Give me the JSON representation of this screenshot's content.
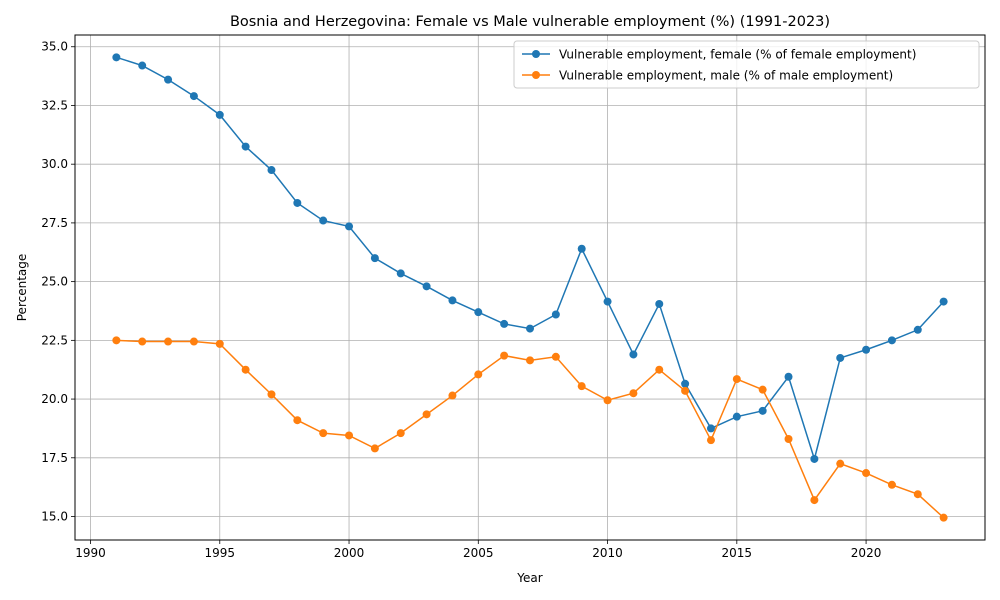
{
  "chart_data": {
    "type": "line",
    "title": "Bosnia and Herzegovina: Female vs Male vulnerable employment (%) (1991-2023)",
    "xlabel": "Year",
    "ylabel": "Percentage",
    "xlim": [
      1989.4,
      2024.6
    ],
    "ylim": [
      14.0,
      35.5
    ],
    "xticks": [
      1990,
      1995,
      2000,
      2005,
      2010,
      2015,
      2020
    ],
    "xtick_labels": [
      "1990",
      "1995",
      "2000",
      "2005",
      "2010",
      "2015",
      "2020"
    ],
    "yticks": [
      15.0,
      17.5,
      20.0,
      22.5,
      25.0,
      27.5,
      30.0,
      32.5,
      35.0
    ],
    "ytick_labels": [
      "15.0",
      "17.5",
      "20.0",
      "22.5",
      "25.0",
      "27.5",
      "30.0",
      "32.5",
      "35.0"
    ],
    "grid": true,
    "legend_position": "top-right",
    "x": [
      1991,
      1992,
      1993,
      1994,
      1995,
      1996,
      1997,
      1998,
      1999,
      2000,
      2001,
      2002,
      2003,
      2004,
      2005,
      2006,
      2007,
      2008,
      2009,
      2010,
      2011,
      2012,
      2013,
      2014,
      2015,
      2016,
      2017,
      2018,
      2019,
      2020,
      2021,
      2022,
      2023
    ],
    "series": [
      {
        "name": "Vulnerable employment, female (% of female employment)",
        "color": "#1f77b4",
        "values": [
          34.55,
          34.2,
          33.6,
          32.9,
          32.1,
          30.75,
          29.75,
          28.35,
          27.6,
          27.35,
          26.0,
          25.35,
          24.8,
          24.2,
          23.7,
          23.2,
          23.0,
          23.6,
          26.4,
          24.15,
          21.9,
          24.05,
          20.65,
          18.75,
          19.25,
          19.5,
          20.95,
          17.45,
          21.75,
          22.1,
          22.5,
          22.95,
          24.15
        ]
      },
      {
        "name": "Vulnerable employment, male (% of male employment)",
        "color": "#ff7f0e",
        "values": [
          22.5,
          22.45,
          22.45,
          22.45,
          22.35,
          21.25,
          20.2,
          19.1,
          18.55,
          18.45,
          17.9,
          18.55,
          19.35,
          20.15,
          21.05,
          21.85,
          21.65,
          21.8,
          20.55,
          19.95,
          20.25,
          21.25,
          20.35,
          18.25,
          20.85,
          20.4,
          18.3,
          15.7,
          17.25,
          16.85,
          16.35,
          15.95,
          14.95
        ]
      }
    ]
  }
}
